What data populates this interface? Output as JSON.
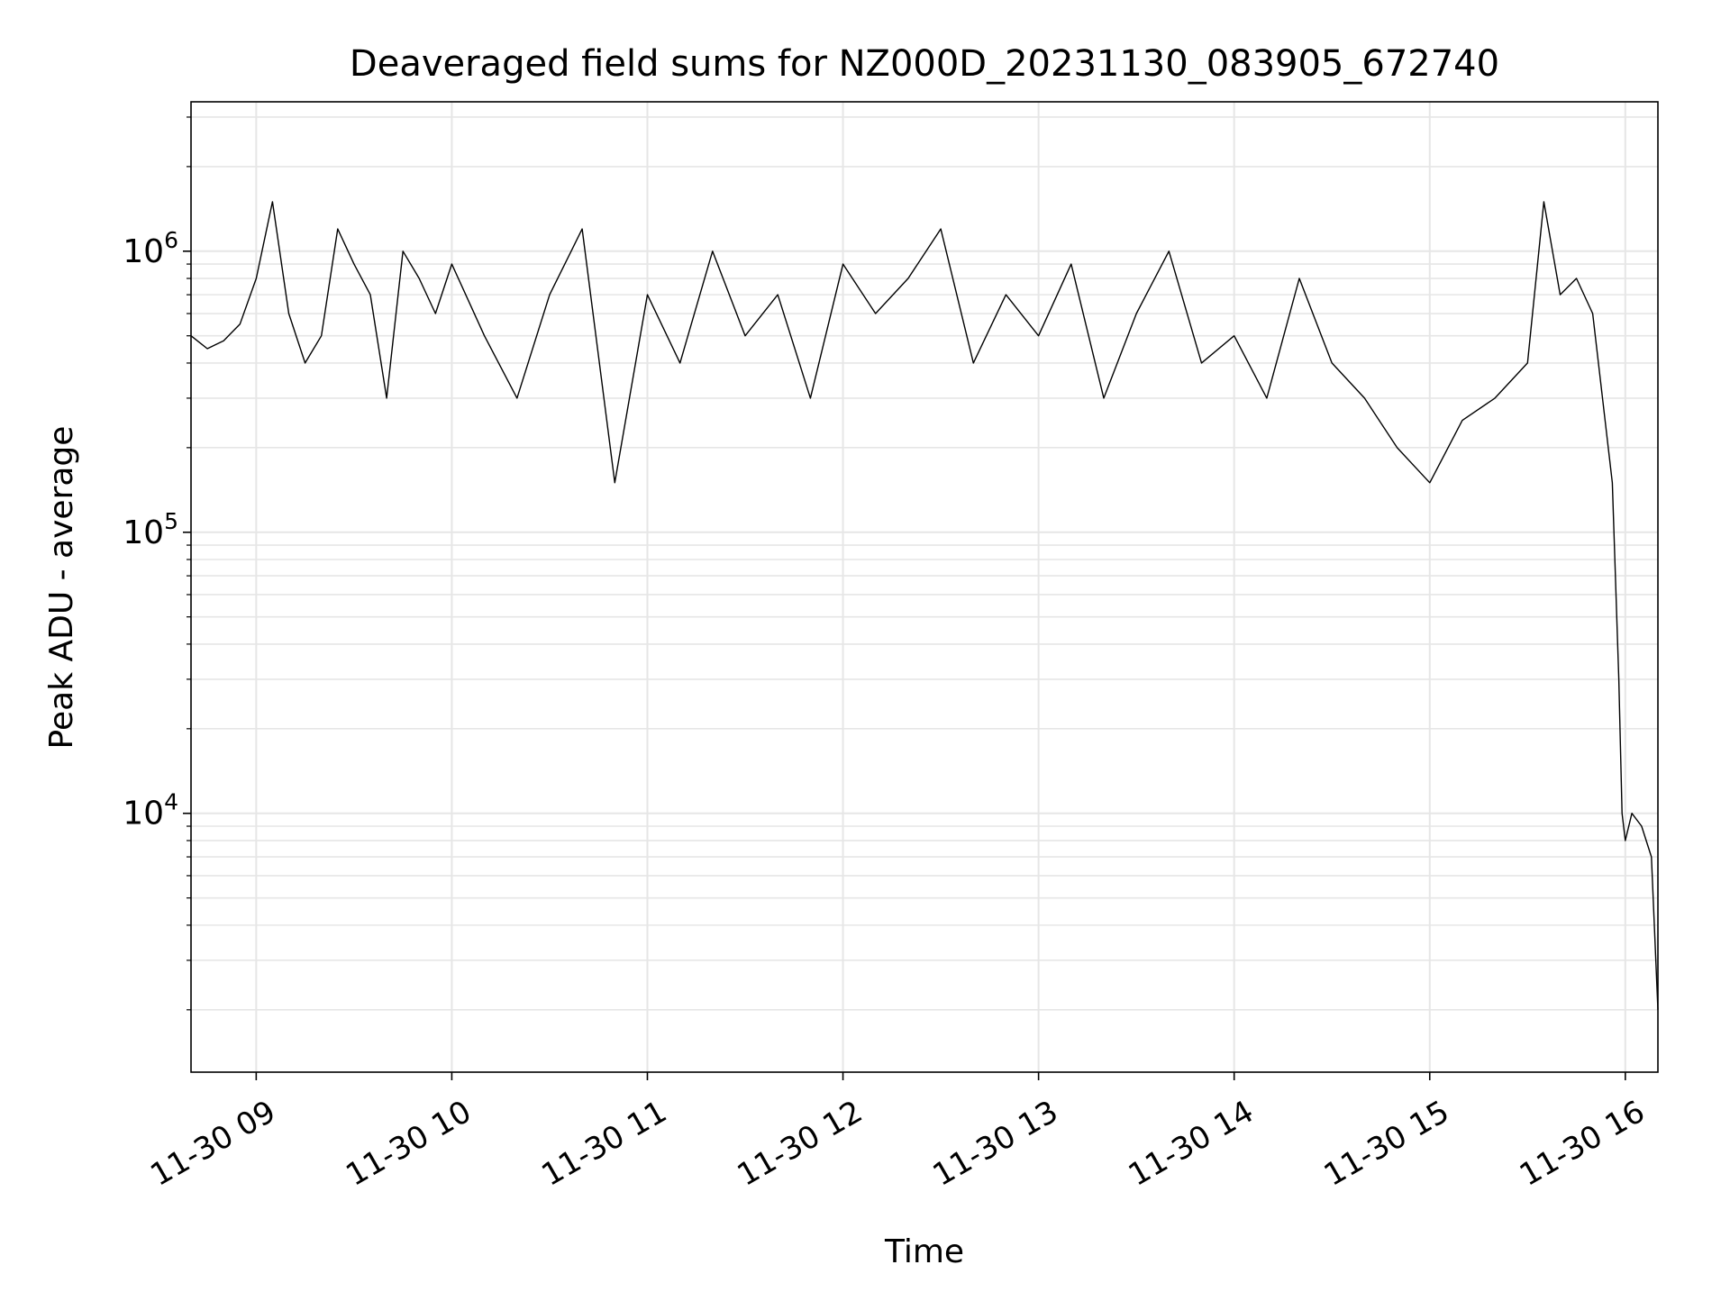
{
  "chart_data": {
    "type": "line",
    "title": "Deaveraged field sums for NZ000D_20231130_083905_672740",
    "xlabel": "Time",
    "ylabel": "Peak ADU - average",
    "yscale": "log",
    "ylim": [
      1200,
      3400000
    ],
    "xlim": [
      "2023-11-30 08:40",
      "2023-11-30 16:10"
    ],
    "x_ticks": [
      {
        "t": "2023-11-30 09:00",
        "label": "11-30 09"
      },
      {
        "t": "2023-11-30 10:00",
        "label": "11-30 10"
      },
      {
        "t": "2023-11-30 11:00",
        "label": "11-30 11"
      },
      {
        "t": "2023-11-30 12:00",
        "label": "11-30 12"
      },
      {
        "t": "2023-11-30 13:00",
        "label": "11-30 13"
      },
      {
        "t": "2023-11-30 14:00",
        "label": "11-30 14"
      },
      {
        "t": "2023-11-30 15:00",
        "label": "11-30 15"
      },
      {
        "t": "2023-11-30 16:00",
        "label": "11-30 16"
      }
    ],
    "y_ticks": [
      {
        "value": 10000,
        "base": "10",
        "exp": "4"
      },
      {
        "value": 100000,
        "base": "10",
        "exp": "5"
      },
      {
        "value": 1000000,
        "base": "10",
        "exp": "6"
      }
    ],
    "grid": true,
    "line_color": "#000000",
    "grid_color": "#e6e6e6",
    "series": [
      {
        "x": [
          "2023-11-30 08:40",
          "2023-11-30 08:45",
          "2023-11-30 08:50",
          "2023-11-30 08:55",
          "2023-11-30 09:00",
          "2023-11-30 09:05",
          "2023-11-30 09:10",
          "2023-11-30 09:15",
          "2023-11-30 09:20",
          "2023-11-30 09:25",
          "2023-11-30 09:30",
          "2023-11-30 09:35",
          "2023-11-30 09:40",
          "2023-11-30 09:45",
          "2023-11-30 09:50",
          "2023-11-30 09:55",
          "2023-11-30 10:00",
          "2023-11-30 10:10",
          "2023-11-30 10:20",
          "2023-11-30 10:30",
          "2023-11-30 10:40",
          "2023-11-30 10:50",
          "2023-11-30 11:00",
          "2023-11-30 11:10",
          "2023-11-30 11:20",
          "2023-11-30 11:30",
          "2023-11-30 11:40",
          "2023-11-30 11:50",
          "2023-11-30 12:00",
          "2023-11-30 12:10",
          "2023-11-30 12:20",
          "2023-11-30 12:30",
          "2023-11-30 12:40",
          "2023-11-30 12:50",
          "2023-11-30 13:00",
          "2023-11-30 13:10",
          "2023-11-30 13:20",
          "2023-11-30 13:30",
          "2023-11-30 13:40",
          "2023-11-30 13:50",
          "2023-11-30 14:00",
          "2023-11-30 14:10",
          "2023-11-30 14:20",
          "2023-11-30 14:30",
          "2023-11-30 14:40",
          "2023-11-30 14:50",
          "2023-11-30 15:00",
          "2023-11-30 15:10",
          "2023-11-30 15:20",
          "2023-11-30 15:30",
          "2023-11-30 15:35",
          "2023-11-30 15:40",
          "2023-11-30 15:45",
          "2023-11-30 15:50",
          "2023-11-30 15:53",
          "2023-11-30 15:56",
          "2023-11-30 15:58",
          "2023-11-30 15:59",
          "2023-11-30 16:00",
          "2023-11-30 16:02",
          "2023-11-30 16:05",
          "2023-11-30 16:08",
          "2023-11-30 16:10"
        ],
        "y": [
          500000,
          450000,
          480000,
          550000,
          800000,
          1500000,
          600000,
          400000,
          500000,
          1200000,
          900000,
          700000,
          300000,
          1000000,
          800000,
          600000,
          900000,
          500000,
          300000,
          700000,
          1200000,
          150000,
          700000,
          400000,
          1000000,
          500000,
          700000,
          300000,
          900000,
          600000,
          800000,
          1200000,
          400000,
          700000,
          500000,
          900000,
          300000,
          600000,
          1000000,
          400000,
          500000,
          300000,
          800000,
          400000,
          300000,
          200000,
          150000,
          250000,
          300000,
          400000,
          1500000,
          700000,
          800000,
          600000,
          300000,
          150000,
          30000,
          10000,
          8000,
          10000,
          9000,
          7000,
          2000
        ]
      }
    ]
  }
}
